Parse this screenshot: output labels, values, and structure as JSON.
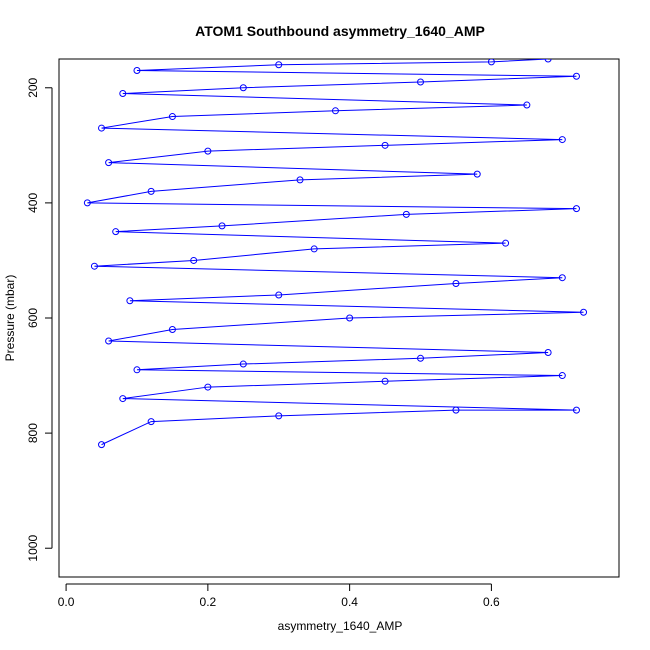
{
  "chart_data": {
    "type": "scatter",
    "title": "ATOM1 Southbound asymmetry_1640_AMP",
    "xlabel": "asymmetry_1640_AMP",
    "ylabel": "Pressure (mbar)",
    "xlim": [
      -0.01,
      0.78
    ],
    "ylim": [
      1050,
      150
    ],
    "y_inverted": true,
    "xticks": [
      0.0,
      0.2,
      0.4,
      0.6
    ],
    "xtick_labels": [
      "0.0",
      "0.2",
      "0.4",
      "0.6"
    ],
    "yticks": [
      200,
      400,
      600,
      800,
      1000
    ],
    "ytick_labels": [
      "200",
      "400",
      "600",
      "800",
      "1000"
    ],
    "grid": false,
    "legend": "none",
    "marker": "open-circle",
    "connected": true,
    "color": "#0000ff",
    "series": [
      {
        "points": [
          [
            0.05,
            820
          ],
          [
            0.12,
            780
          ],
          [
            0.3,
            770
          ],
          [
            0.55,
            760
          ],
          [
            0.72,
            760
          ],
          [
            0.08,
            740
          ],
          [
            0.2,
            720
          ],
          [
            0.45,
            710
          ],
          [
            0.7,
            700
          ],
          [
            0.1,
            690
          ],
          [
            0.25,
            680
          ],
          [
            0.5,
            670
          ],
          [
            0.68,
            660
          ],
          [
            0.06,
            640
          ],
          [
            0.15,
            620
          ],
          [
            0.4,
            600
          ],
          [
            0.73,
            590
          ],
          [
            0.09,
            570
          ],
          [
            0.3,
            560
          ],
          [
            0.55,
            540
          ],
          [
            0.7,
            530
          ],
          [
            0.04,
            510
          ],
          [
            0.18,
            500
          ],
          [
            0.35,
            480
          ],
          [
            0.62,
            470
          ],
          [
            0.07,
            450
          ],
          [
            0.22,
            440
          ],
          [
            0.48,
            420
          ],
          [
            0.72,
            410
          ],
          [
            0.03,
            400
          ],
          [
            0.12,
            380
          ],
          [
            0.33,
            360
          ],
          [
            0.58,
            350
          ],
          [
            0.06,
            330
          ],
          [
            0.2,
            310
          ],
          [
            0.45,
            300
          ],
          [
            0.7,
            290
          ],
          [
            0.05,
            270
          ],
          [
            0.15,
            250
          ],
          [
            0.38,
            240
          ],
          [
            0.65,
            230
          ],
          [
            0.08,
            210
          ],
          [
            0.25,
            200
          ],
          [
            0.5,
            190
          ],
          [
            0.72,
            180
          ],
          [
            0.1,
            170
          ],
          [
            0.3,
            160
          ],
          [
            0.6,
            155
          ],
          [
            0.68,
            150
          ]
        ]
      }
    ]
  }
}
